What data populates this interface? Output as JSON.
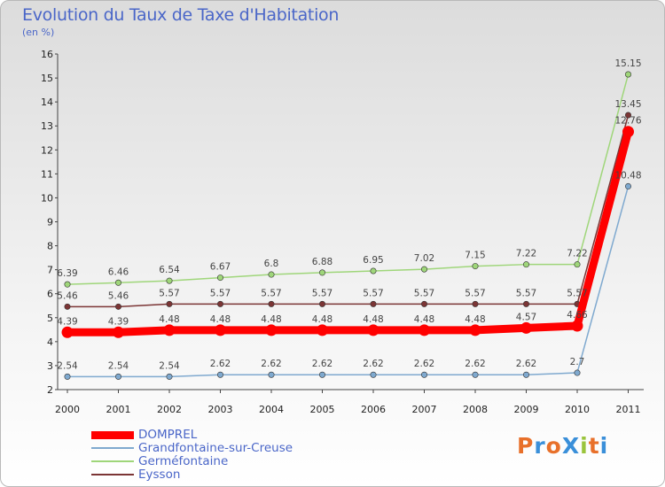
{
  "title": "Evolution du Taux de Taxe d'Habitation",
  "subtitle": "(en %)",
  "brand": {
    "text": "ProXiti",
    "colors": [
      "#e8702a",
      "#3a8fd9",
      "#e8702a",
      "#3a8fd9",
      "#9ac43c",
      "#e8702a",
      "#3a8fd9"
    ]
  },
  "chart_data": {
    "type": "line",
    "x": [
      "2000",
      "2001",
      "2002",
      "2003",
      "2004",
      "2005",
      "2006",
      "2007",
      "2008",
      "2009",
      "2010",
      "2011"
    ],
    "ylim": [
      2,
      16
    ],
    "yticks": [
      2,
      3,
      4,
      5,
      6,
      7,
      8,
      9,
      10,
      11,
      12,
      13,
      14,
      15,
      16
    ],
    "grid": false,
    "legend_position": "bottom-left",
    "series": [
      {
        "name": "DOMPREL",
        "color": "#ff0000",
        "emphasis": true,
        "values": [
          4.39,
          4.39,
          4.48,
          4.48,
          4.48,
          4.48,
          4.48,
          4.48,
          4.48,
          4.57,
          4.66,
          12.76
        ],
        "labels": [
          "4.39",
          "4.39",
          "4.48",
          "4.48",
          "4.48",
          "4.48",
          "4.48",
          "4.48",
          "4.48",
          "4.57",
          "4.66",
          "12.76"
        ]
      },
      {
        "name": "Grandfontaine-sur-Creuse",
        "color": "#7fa9cf",
        "values": [
          2.54,
          2.54,
          2.54,
          2.62,
          2.62,
          2.62,
          2.62,
          2.62,
          2.62,
          2.62,
          2.7,
          10.48
        ],
        "labels": [
          "2.54",
          "2.54",
          "2.54",
          "2.62",
          "2.62",
          "2.62",
          "2.62",
          "2.62",
          "2.62",
          "2.62",
          "2.7",
          "10.48"
        ]
      },
      {
        "name": "Germéfontaine",
        "color": "#9fd67a",
        "values": [
          6.39,
          6.46,
          6.54,
          6.67,
          6.8,
          6.88,
          6.95,
          7.02,
          7.15,
          7.22,
          7.22,
          15.15
        ],
        "labels": [
          "6.39",
          "6.46",
          "6.54",
          "6.67",
          "6.8",
          "6.88",
          "6.95",
          "7.02",
          "7.15",
          "7.22",
          "7.22",
          "15.15"
        ]
      },
      {
        "name": "Eysson",
        "color": "#7b3535",
        "values": [
          5.46,
          5.46,
          5.57,
          5.57,
          5.57,
          5.57,
          5.57,
          5.57,
          5.57,
          5.57,
          5.57,
          13.45
        ],
        "labels": [
          "5.46",
          "5.46",
          "5.57",
          "5.57",
          "5.57",
          "5.57",
          "5.57",
          "5.57",
          "5.57",
          "5.57",
          "5.57",
          "13.45"
        ]
      }
    ]
  }
}
